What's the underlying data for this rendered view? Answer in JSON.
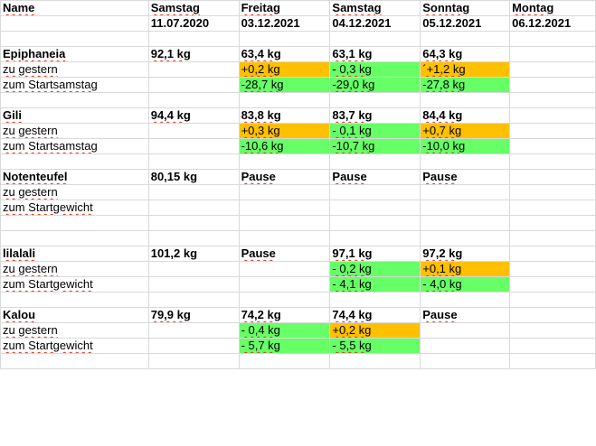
{
  "columns": [
    {
      "day": "Name",
      "date": ""
    },
    {
      "day": "Samstag",
      "date": "11.07.2020"
    },
    {
      "day": "Freitag",
      "date": "03.12.2021"
    },
    {
      "day": "Samstag",
      "date": "04.12.2021"
    },
    {
      "day": "Sonntag",
      "date": "05.12.2021"
    },
    {
      "day": "Montag",
      "date": "06.12.2021"
    }
  ],
  "rows": [
    {
      "type": "header",
      "cells": [
        {
          "text": "Name",
          "bold": true,
          "spell": true
        },
        {
          "text": "Samstag",
          "bold": true,
          "spell": true
        },
        {
          "text": "Freitag",
          "bold": true,
          "spell": true
        },
        {
          "text": "Samstag",
          "bold": true,
          "spell": true
        },
        {
          "text": "Sonntag",
          "bold": true,
          "spell": true
        },
        {
          "text": "Montag",
          "bold": true,
          "spell": true
        }
      ]
    },
    {
      "type": "dates",
      "cells": [
        {
          "text": ""
        },
        {
          "text": "11.07.2020",
          "bold": true
        },
        {
          "text": "03.12.2021",
          "bold": true
        },
        {
          "text": "04.12.2021",
          "bold": true
        },
        {
          "text": "05.12.2021",
          "bold": true
        },
        {
          "text": "06.12.2021",
          "bold": true
        }
      ]
    },
    {
      "type": "blank",
      "cells": []
    },
    {
      "type": "person",
      "cells": [
        {
          "text": "Epiphaneia",
          "bold": true,
          "spell": true
        },
        {
          "text": "92,1 kg",
          "bold": true,
          "spell": true
        },
        {
          "text": "63,4 kg",
          "bold": true,
          "spell": true
        },
        {
          "text": "63,1 kg",
          "bold": true,
          "spell": true
        },
        {
          "text": "64,3 kg",
          "bold": true,
          "spell": true
        },
        {
          "text": ""
        }
      ]
    },
    {
      "type": "diff",
      "cells": [
        {
          "text": "zu gestern",
          "spell": true
        },
        {
          "text": ""
        },
        {
          "text": "+0,2 kg",
          "bg": "orange",
          "spell": true
        },
        {
          "text": "- 0,3 kg",
          "bg": "green",
          "spell": true
        },
        {
          "text": "´+1,2 kg",
          "bg": "orange",
          "spell": true
        },
        {
          "text": ""
        }
      ]
    },
    {
      "type": "diff",
      "cells": [
        {
          "text": "zum Startsamstag",
          "spell": true
        },
        {
          "text": ""
        },
        {
          "text": "-28,7 kg",
          "bg": "green",
          "spell": true
        },
        {
          "text": "-29,0 kg",
          "bg": "green",
          "spell": true
        },
        {
          "text": "-27,8 kg",
          "bg": "green",
          "spell": true
        },
        {
          "text": ""
        }
      ]
    },
    {
      "type": "blank",
      "cells": []
    },
    {
      "type": "person",
      "cells": [
        {
          "text": "Gili",
          "bold": true,
          "spell": true
        },
        {
          "text": "94,4 kg",
          "bold": true,
          "spell": true
        },
        {
          "text": "83,8 kg",
          "bold": true,
          "spell": true
        },
        {
          "text": "83,7 kg",
          "bold": true,
          "spell": true
        },
        {
          "text": "84,4 kg",
          "bold": true,
          "spell": true
        },
        {
          "text": ""
        }
      ]
    },
    {
      "type": "diff",
      "cells": [
        {
          "text": "zu gestern",
          "spell": true
        },
        {
          "text": ""
        },
        {
          "text": "+0,3 kg",
          "bg": "orange",
          "spell": true
        },
        {
          "text": "- 0,1 kg",
          "bg": "green",
          "spell": true
        },
        {
          "text": "+0,7 kg",
          "bg": "orange",
          "spell": true
        },
        {
          "text": ""
        }
      ]
    },
    {
      "type": "diff",
      "cells": [
        {
          "text": "zum Startsamstag",
          "spell": true
        },
        {
          "text": ""
        },
        {
          "text": "-10,6 kg",
          "bg": "green",
          "spell": true
        },
        {
          "text": "-10,7 kg",
          "bg": "green",
          "spell": true
        },
        {
          "text": "-10,0 kg",
          "bg": "green",
          "spell": true
        },
        {
          "text": ""
        }
      ]
    },
    {
      "type": "blank",
      "cells": []
    },
    {
      "type": "person",
      "cells": [
        {
          "text": "Notenteufel",
          "bold": true,
          "spell": true
        },
        {
          "text": "80,15 kg",
          "bold": true
        },
        {
          "text": "Pause",
          "bold": true,
          "spell": true
        },
        {
          "text": "Pause",
          "bold": true,
          "spell": true
        },
        {
          "text": "Pause",
          "bold": true,
          "spell": true
        },
        {
          "text": ""
        }
      ]
    },
    {
      "type": "diff",
      "cells": [
        {
          "text": "zu gestern",
          "spell": true
        },
        {
          "text": ""
        },
        {
          "text": ""
        },
        {
          "text": ""
        },
        {
          "text": ""
        },
        {
          "text": ""
        }
      ]
    },
    {
      "type": "diff",
      "cells": [
        {
          "text": "zum Startgewicht",
          "spell": true
        },
        {
          "text": ""
        },
        {
          "text": ""
        },
        {
          "text": ""
        },
        {
          "text": ""
        },
        {
          "text": ""
        }
      ]
    },
    {
      "type": "blank",
      "cells": []
    },
    {
      "type": "blank",
      "cells": []
    },
    {
      "type": "person",
      "cells": [
        {
          "text": "lilalali",
          "bold": true,
          "spell": true
        },
        {
          "text": "101,2 kg",
          "bold": true
        },
        {
          "text": "Pause",
          "bold": true,
          "spell": true
        },
        {
          "text": "97,1 kg",
          "bold": true,
          "spell": true
        },
        {
          "text": "97,2 kg",
          "bold": true,
          "spell": true
        },
        {
          "text": ""
        }
      ]
    },
    {
      "type": "diff",
      "cells": [
        {
          "text": "zu gestern",
          "spell": true
        },
        {
          "text": ""
        },
        {
          "text": ""
        },
        {
          "text": "- 0,2 kg",
          "bg": "green",
          "spell": true
        },
        {
          "text": "+0,1 kg",
          "bg": "orange",
          "spell": true
        },
        {
          "text": ""
        }
      ]
    },
    {
      "type": "diff",
      "cells": [
        {
          "text": "zum Startgewicht",
          "spell": true
        },
        {
          "text": ""
        },
        {
          "text": ""
        },
        {
          "text": "- 4,1 kg",
          "bg": "green",
          "spell": true
        },
        {
          "text": "- 4,0 kg",
          "bg": "green",
          "spell": true
        },
        {
          "text": ""
        }
      ]
    },
    {
      "type": "blank",
      "cells": []
    },
    {
      "type": "person",
      "cells": [
        {
          "text": "Kalou",
          "bold": true,
          "spell": true
        },
        {
          "text": "79,9 kg",
          "bold": true,
          "spell": true
        },
        {
          "text": "74,2 kg",
          "bold": true,
          "spell": true
        },
        {
          "text": "74,4 kg",
          "bold": true,
          "spell": true
        },
        {
          "text": "Pause",
          "bold": true,
          "spell": true
        },
        {
          "text": ""
        }
      ]
    },
    {
      "type": "diff",
      "cells": [
        {
          "text": "zu gestern",
          "spell": true
        },
        {
          "text": ""
        },
        {
          "text": "- 0,4 kg",
          "bg": "green",
          "spell": true
        },
        {
          "text": "+0,2 kg",
          "bg": "orange",
          "spell": true
        },
        {
          "text": ""
        },
        {
          "text": ""
        }
      ]
    },
    {
      "type": "diff",
      "cells": [
        {
          "text": "zum Startgewicht",
          "spell": true
        },
        {
          "text": ""
        },
        {
          "text": "- 5,7 kg",
          "bg": "green",
          "spell": true
        },
        {
          "text": "- 5,5 kg",
          "bg": "green",
          "spell": true
        },
        {
          "text": ""
        },
        {
          "text": ""
        }
      ]
    },
    {
      "type": "blank",
      "cells": []
    }
  ],
  "colors": {
    "green": "#66ff66",
    "orange": "#ffc000",
    "gridline": "#d9d9d9",
    "spellcheck": "#e0301e"
  }
}
